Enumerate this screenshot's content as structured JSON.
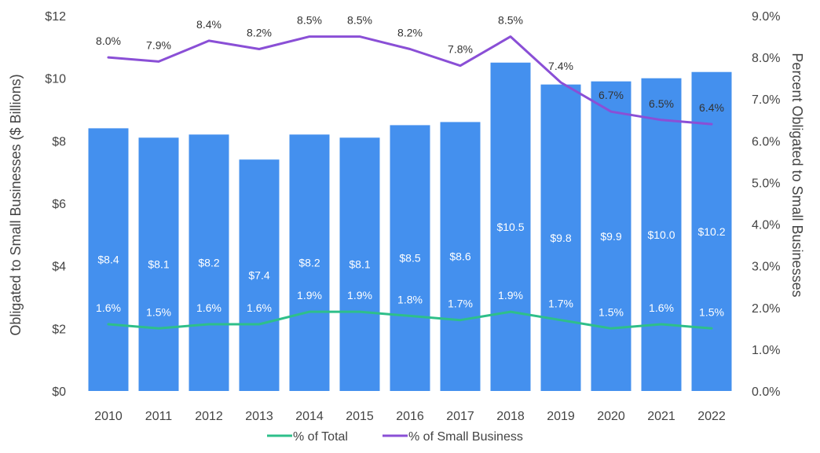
{
  "chart_data": {
    "type": "bar",
    "categories": [
      "2010",
      "2011",
      "2012",
      "2013",
      "2014",
      "2015",
      "2016",
      "2017",
      "2018",
      "2019",
      "2020",
      "2021",
      "2022"
    ],
    "bar_series": {
      "values": [
        8.4,
        8.1,
        8.2,
        7.4,
        8.2,
        8.1,
        8.5,
        8.6,
        10.5,
        9.8,
        9.9,
        10.0,
        10.2
      ],
      "labels": [
        "$8.4",
        "$8.1",
        "$8.2",
        "$7.4",
        "$8.2",
        "$8.1",
        "$8.5",
        "$8.6",
        "$10.5",
        "$9.8",
        "$9.9",
        "$10.0",
        "$10.2"
      ],
      "color": "#4490EE"
    },
    "line_series": [
      {
        "name": "% of Total",
        "values": [
          1.6,
          1.5,
          1.6,
          1.6,
          1.9,
          1.9,
          1.8,
          1.7,
          1.9,
          1.7,
          1.5,
          1.6,
          1.5
        ],
        "labels": [
          "1.6%",
          "1.5%",
          "1.6%",
          "1.6%",
          "1.9%",
          "1.9%",
          "1.8%",
          "1.7%",
          "1.9%",
          "1.7%",
          "1.5%",
          "1.6%",
          "1.5%"
        ],
        "color": "#2EBF8A"
      },
      {
        "name": "% of Small Business",
        "values": [
          8.0,
          7.9,
          8.4,
          8.2,
          8.5,
          8.5,
          8.2,
          7.8,
          8.5,
          7.4,
          6.7,
          6.5,
          6.4
        ],
        "labels": [
          "8.0%",
          "7.9%",
          "8.4%",
          "8.2%",
          "8.5%",
          "8.5%",
          "8.2%",
          "7.8%",
          "8.5%",
          "7.4%",
          "6.7%",
          "6.5%",
          "6.4%"
        ],
        "color": "#8A4FD6"
      }
    ],
    "y_left": {
      "label": "Obligated to Small Businesses ($ Billions)",
      "ticks": [
        "$0",
        "$2",
        "$4",
        "$6",
        "$8",
        "$10",
        "$12"
      ],
      "lim": [
        0,
        12
      ]
    },
    "y_right": {
      "label": "Percent  Obligated to Small Businesses",
      "ticks": [
        "0.0%",
        "1.0%",
        "2.0%",
        "3.0%",
        "4.0%",
        "5.0%",
        "6.0%",
        "7.0%",
        "8.0%",
        "9.0%"
      ],
      "lim": [
        0,
        9
      ]
    },
    "grid": false,
    "legend_position": "bottom"
  }
}
